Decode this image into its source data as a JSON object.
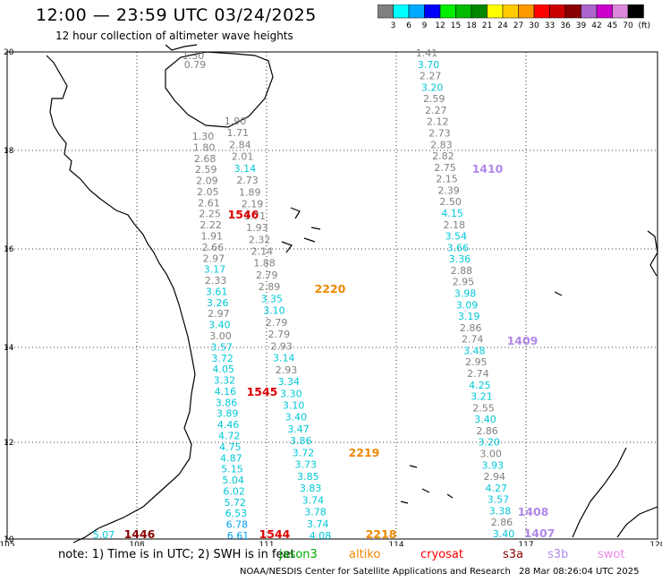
{
  "header": {
    "title": "12:00 — 23:59 UTC 03/24/2025",
    "subtitle": "12 hour collection of altimeter wave heights"
  },
  "colorbar": {
    "unit": "(ft)",
    "colors": [
      "#808080",
      "#00ffff",
      "#00aaff",
      "#0000ff",
      "#00ee00",
      "#00bb00",
      "#008800",
      "#ffff00",
      "#ffcc00",
      "#ff9900",
      "#ff0000",
      "#cc0000",
      "#880000",
      "#aa66cc",
      "#cc00cc",
      "#dd88dd",
      "#000000"
    ],
    "labels": [
      "3",
      "6",
      "9",
      "12",
      "15",
      "18",
      "21",
      "24",
      "27",
      "30",
      "33",
      "36",
      "39",
      "42",
      "45",
      "70"
    ]
  },
  "axes": {
    "lat_labels": [
      "20",
      "18",
      "16",
      "14",
      "12",
      "10"
    ],
    "lon_labels": [
      "105",
      "108",
      "111",
      "114",
      "117",
      "120"
    ]
  },
  "tracks": {
    "a": {
      "color": "#808080",
      "values": [
        "1.30",
        "0.79"
      ]
    },
    "b": {
      "values": [
        {
          "v": "1.30",
          "c": "#808080"
        },
        {
          "v": "1.80",
          "c": "#808080"
        },
        {
          "v": "2.68",
          "c": "#808080"
        },
        {
          "v": "2.59",
          "c": "#808080"
        },
        {
          "v": "2.09",
          "c": "#808080"
        },
        {
          "v": "2.05",
          "c": "#808080"
        },
        {
          "v": "2.61",
          "c": "#808080"
        },
        {
          "v": "2.25",
          "c": "#808080"
        },
        {
          "v": "2.22",
          "c": "#808080"
        },
        {
          "v": "1.91",
          "c": "#808080"
        },
        {
          "v": "2.66",
          "c": "#808080"
        },
        {
          "v": "2.97",
          "c": "#808080"
        },
        {
          "v": "3.17",
          "c": "#00c8d8"
        },
        {
          "v": "2.33",
          "c": "#808080"
        },
        {
          "v": "3.61",
          "c": "#00c8d8"
        },
        {
          "v": "3.26",
          "c": "#00c8d8"
        },
        {
          "v": "2.97",
          "c": "#808080"
        },
        {
          "v": "3.40",
          "c": "#00c8d8"
        },
        {
          "v": "3.00",
          "c": "#808080"
        },
        {
          "v": "3.57",
          "c": "#00c8d8"
        },
        {
          "v": "3.72",
          "c": "#00c8d8"
        },
        {
          "v": "4.05",
          "c": "#00c8d8"
        },
        {
          "v": "3.32",
          "c": "#00c8d8"
        },
        {
          "v": "4.16",
          "c": "#00c8d8"
        },
        {
          "v": "3.86",
          "c": "#00c8d8"
        },
        {
          "v": "3.89",
          "c": "#00c8d8"
        },
        {
          "v": "4.46",
          "c": "#00c8d8"
        },
        {
          "v": "4.72",
          "c": "#00c8d8"
        },
        {
          "v": "4.75",
          "c": "#00c8d8"
        },
        {
          "v": "4.87",
          "c": "#00c8d8"
        },
        {
          "v": "5.15",
          "c": "#00c8d8"
        },
        {
          "v": "5.04",
          "c": "#00c8d8"
        },
        {
          "v": "6.02",
          "c": "#00c8d8"
        },
        {
          "v": "5.72",
          "c": "#00c8d8"
        },
        {
          "v": "6.53",
          "c": "#00c8d8"
        },
        {
          "v": "6.78",
          "c": "#00a0ee"
        },
        {
          "v": "6.61",
          "c": "#00a0ee"
        }
      ]
    },
    "c": {
      "values": [
        {
          "v": "1.90",
          "c": "#808080"
        },
        {
          "v": "1.71",
          "c": "#808080"
        },
        {
          "v": "2.84",
          "c": "#808080"
        },
        {
          "v": "2.01",
          "c": "#808080"
        },
        {
          "v": "3.14",
          "c": "#00c8d8"
        },
        {
          "v": "2.73",
          "c": "#808080"
        },
        {
          "v": "1.89",
          "c": "#808080"
        },
        {
          "v": "2.19",
          "c": "#808080"
        },
        {
          "v": "1.71",
          "c": "#808080"
        },
        {
          "v": "1.93",
          "c": "#808080"
        },
        {
          "v": "2.32",
          "c": "#808080"
        },
        {
          "v": "2.14",
          "c": "#808080"
        },
        {
          "v": "1.88",
          "c": "#808080"
        },
        {
          "v": "2.79",
          "c": "#808080"
        },
        {
          "v": "2.89",
          "c": "#808080"
        },
        {
          "v": "3.35",
          "c": "#00c8d8"
        },
        {
          "v": "3.10",
          "c": "#00c8d8"
        },
        {
          "v": "2.79",
          "c": "#808080"
        },
        {
          "v": "2.79",
          "c": "#808080"
        },
        {
          "v": "2.93",
          "c": "#808080"
        },
        {
          "v": "3.14",
          "c": "#00c8d8"
        },
        {
          "v": "2.93",
          "c": "#808080"
        },
        {
          "v": "3.34",
          "c": "#00c8d8"
        },
        {
          "v": "3.30",
          "c": "#00c8d8"
        },
        {
          "v": "3.10",
          "c": "#00c8d8"
        },
        {
          "v": "3.40",
          "c": "#00c8d8"
        },
        {
          "v": "3.47",
          "c": "#00c8d8"
        },
        {
          "v": "3.86",
          "c": "#00c8d8"
        },
        {
          "v": "3.72",
          "c": "#00c8d8"
        },
        {
          "v": "3.73",
          "c": "#00c8d8"
        },
        {
          "v": "3.85",
          "c": "#00c8d8"
        },
        {
          "v": "3.83",
          "c": "#00c8d8"
        },
        {
          "v": "3.74",
          "c": "#00c8d8"
        },
        {
          "v": "3.78",
          "c": "#00c8d8"
        },
        {
          "v": "3.74",
          "c": "#00c8d8"
        },
        {
          "v": "4.08",
          "c": "#00c8d8"
        }
      ]
    },
    "d": {
      "values": [
        {
          "v": "1.41",
          "c": "#808080"
        },
        {
          "v": "3.70",
          "c": "#00c8d8"
        },
        {
          "v": "2.27",
          "c": "#808080"
        },
        {
          "v": "3.20",
          "c": "#00c8d8"
        },
        {
          "v": "2.59",
          "c": "#808080"
        },
        {
          "v": "2.27",
          "c": "#808080"
        },
        {
          "v": "2.12",
          "c": "#808080"
        },
        {
          "v": "2.73",
          "c": "#808080"
        },
        {
          "v": "2.83",
          "c": "#808080"
        },
        {
          "v": "2.82",
          "c": "#808080"
        },
        {
          "v": "2.75",
          "c": "#808080"
        },
        {
          "v": "2.15",
          "c": "#808080"
        },
        {
          "v": "2.39",
          "c": "#808080"
        },
        {
          "v": "2.50",
          "c": "#808080"
        },
        {
          "v": "4.15",
          "c": "#00c8d8"
        },
        {
          "v": "2.18",
          "c": "#808080"
        },
        {
          "v": "3.54",
          "c": "#00c8d8"
        },
        {
          "v": "3.66",
          "c": "#00c8d8"
        },
        {
          "v": "3.36",
          "c": "#00c8d8"
        },
        {
          "v": "2.88",
          "c": "#808080"
        },
        {
          "v": "2.95",
          "c": "#808080"
        },
        {
          "v": "3.98",
          "c": "#00c8d8"
        },
        {
          "v": "3.09",
          "c": "#00c8d8"
        },
        {
          "v": "3.19",
          "c": "#00c8d8"
        },
        {
          "v": "2.86",
          "c": "#808080"
        },
        {
          "v": "2.74",
          "c": "#808080"
        },
        {
          "v": "3.48",
          "c": "#00c8d8"
        },
        {
          "v": "2.95",
          "c": "#808080"
        },
        {
          "v": "2.74",
          "c": "#808080"
        },
        {
          "v": "4.25",
          "c": "#00c8d8"
        },
        {
          "v": "3.21",
          "c": "#00c8d8"
        },
        {
          "v": "2.55",
          "c": "#808080"
        },
        {
          "v": "3.40",
          "c": "#00c8d8"
        },
        {
          "v": "2.86",
          "c": "#808080"
        },
        {
          "v": "3.20",
          "c": "#00c8d8"
        },
        {
          "v": "3.00",
          "c": "#808080"
        },
        {
          "v": "3.93",
          "c": "#00c8d8"
        },
        {
          "v": "2.94",
          "c": "#808080"
        },
        {
          "v": "4.27",
          "c": "#00c8d8"
        },
        {
          "v": "3.57",
          "c": "#00c8d8"
        },
        {
          "v": "3.38",
          "c": "#00c8d8"
        },
        {
          "v": "2.86",
          "c": "#808080"
        },
        {
          "v": "3.40",
          "c": "#00c8d8"
        }
      ]
    },
    "e": {
      "values": [
        {
          "v": "5.07",
          "c": "#00c8d8"
        }
      ]
    }
  },
  "pass_times": [
    {
      "t": "1546",
      "c": "#dd0000"
    },
    {
      "t": "1545",
      "c": "#dd0000"
    },
    {
      "t": "1544",
      "c": "#dd0000"
    },
    {
      "t": "1446",
      "c": "#880000"
    },
    {
      "t": "2220",
      "c": "#ee8800"
    },
    {
      "t": "2219",
      "c": "#ee8800"
    },
    {
      "t": "2218",
      "c": "#ee8800"
    },
    {
      "t": "1410",
      "c": "#b088e8"
    },
    {
      "t": "1409",
      "c": "#b088e8"
    },
    {
      "t": "1408",
      "c": "#b088e8"
    },
    {
      "t": "1407",
      "c": "#b088e8"
    }
  ],
  "footer": {
    "note": "note:  1) Time is in UTC;  2) SWH is in feet",
    "satellites": [
      {
        "name": "jason3",
        "color": "#00aa00"
      },
      {
        "name": "altiko",
        "color": "#ee8800"
      },
      {
        "name": "cryosat",
        "color": "#ff0000"
      },
      {
        "name": "s3a",
        "color": "#880000"
      },
      {
        "name": "s3b",
        "color": "#b088e8"
      },
      {
        "name": "swot",
        "color": "#ee88ee"
      }
    ],
    "credit": "NOAA/NESDIS Center for Satellite Applications and Research",
    "issued": "28 Mar 08:26:04 UTC 2025"
  }
}
